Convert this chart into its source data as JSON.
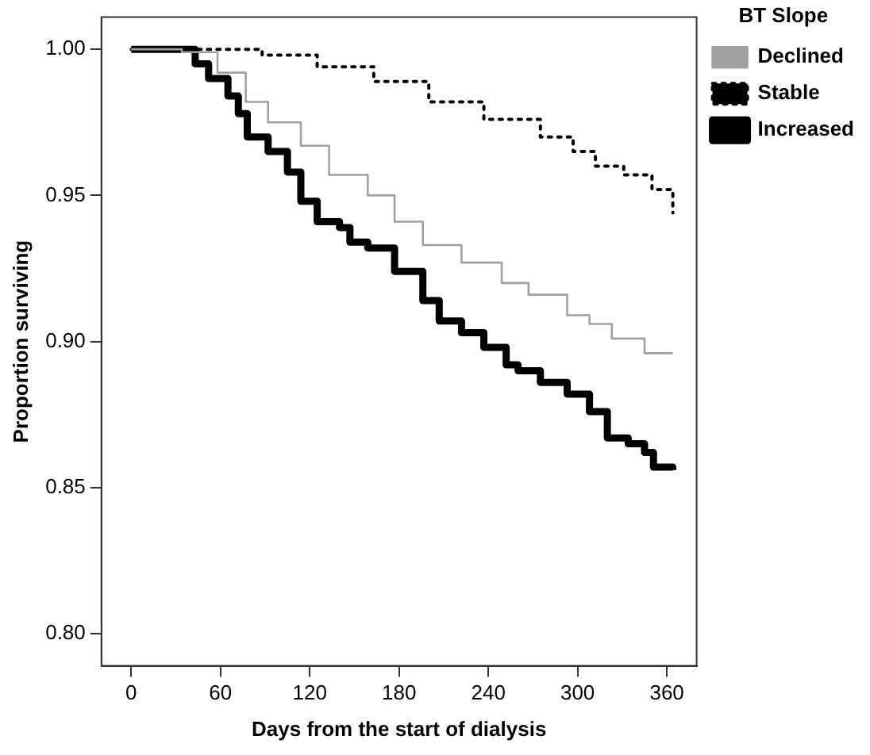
{
  "chart_data": {
    "type": "step",
    "xlabel": "Days from the start of dialysis",
    "ylabel": "Proportion surviving",
    "legend_title": "BT Slope",
    "legend": "right",
    "grid": false,
    "xlim": [
      -20,
      380
    ],
    "ylim": [
      0.789,
      1.011
    ],
    "xticks": [
      0,
      60,
      120,
      180,
      240,
      300,
      360
    ],
    "yticks": [
      {
        "value": 0.8,
        "label": "0.80"
      },
      {
        "value": 0.85,
        "label": "0.85"
      },
      {
        "value": 0.9,
        "label": "0.90"
      },
      {
        "value": 0.95,
        "label": "0.95"
      },
      {
        "value": 1.0,
        "label": "1.00"
      }
    ],
    "series": [
      {
        "name": "Declined",
        "color": "#a0a0a0",
        "line_style": "solid",
        "x": [
          0,
          34,
          58,
          77,
          92,
          114,
          133,
          159,
          177,
          196,
          222,
          249,
          267,
          293,
          308,
          323,
          336,
          345,
          364
        ],
        "values": [
          1.0,
          0.999,
          0.992,
          0.982,
          0.975,
          0.967,
          0.957,
          0.95,
          0.941,
          0.933,
          0.927,
          0.92,
          0.916,
          0.909,
          0.906,
          0.901,
          0.901,
          0.896,
          0.896
        ]
      },
      {
        "name": "Stable",
        "color": "#000000",
        "line_style": "dotted",
        "x": [
          0,
          34,
          58,
          88,
          125,
          163,
          200,
          237,
          275,
          297,
          312,
          331,
          350,
          364
        ],
        "values": [
          1.0,
          1.0,
          1.0,
          0.998,
          0.994,
          0.989,
          0.982,
          0.976,
          0.97,
          0.965,
          0.96,
          0.957,
          0.952,
          0.944
        ]
      },
      {
        "name": "Increased",
        "color": "#000000",
        "line_style": "solid",
        "x": [
          0,
          32,
          43,
          52,
          65,
          72,
          78,
          92,
          105,
          114,
          125,
          140,
          147,
          159,
          177,
          196,
          207,
          222,
          237,
          252,
          260,
          275,
          293,
          308,
          320,
          334,
          345,
          351,
          364
        ],
        "values": [
          1.0,
          1.0,
          0.995,
          0.99,
          0.984,
          0.978,
          0.97,
          0.965,
          0.958,
          0.948,
          0.941,
          0.939,
          0.934,
          0.932,
          0.924,
          0.914,
          0.907,
          0.903,
          0.898,
          0.892,
          0.89,
          0.886,
          0.882,
          0.876,
          0.867,
          0.865,
          0.862,
          0.857,
          0.856
        ]
      }
    ]
  }
}
